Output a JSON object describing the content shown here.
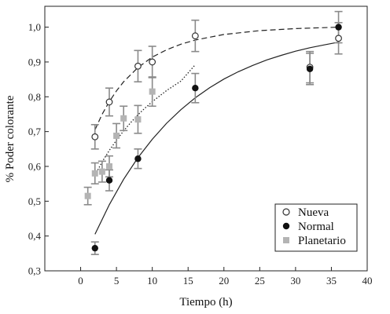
{
  "chart_data": {
    "type": "scatter",
    "xlabel": "Tiempo (h)",
    "ylabel": "% Poder colorante",
    "xlim": [
      -5,
      40
    ],
    "ylim": [
      0.3,
      1.06
    ],
    "xticks": [
      0,
      5,
      10,
      15,
      20,
      25,
      30,
      35,
      40
    ],
    "yticks": [
      0.3,
      0.4,
      0.5,
      0.6,
      0.7,
      0.8,
      0.9,
      1.0
    ],
    "xtick_labels": [
      "0",
      "5",
      "10",
      "15",
      "20",
      "25",
      "30",
      "35",
      "40"
    ],
    "ytick_labels": [
      "0,3",
      "0,4",
      "0,5",
      "0,6",
      "0,7",
      "0,8",
      "0,9",
      "1,0"
    ],
    "grid": false,
    "legend_position": "bottom-right",
    "series": [
      {
        "name": "Nueva",
        "marker": "open-circle",
        "color": "#333333",
        "errorbar_color": "#8a8a8a",
        "fit_style": "dashed",
        "points": [
          {
            "x": 2,
            "y": 0.685,
            "err": 0.035
          },
          {
            "x": 4,
            "y": 0.785,
            "err": 0.04
          },
          {
            "x": 8,
            "y": 0.888,
            "err": 0.045
          },
          {
            "x": 10,
            "y": 0.9,
            "err": 0.045
          },
          {
            "x": 16,
            "y": 0.975,
            "err": 0.045
          },
          {
            "x": 32,
            "y": 0.885,
            "err": 0.045
          },
          {
            "x": 36,
            "y": 0.968,
            "err": 0.045
          }
        ],
        "fit": {
          "x": [
            2,
            3,
            4,
            5,
            6,
            8,
            10,
            12,
            14,
            16,
            20,
            25,
            30,
            36
          ],
          "y": [
            0.705,
            0.75,
            0.786,
            0.817,
            0.843,
            0.884,
            0.914,
            0.935,
            0.951,
            0.963,
            0.979,
            0.99,
            0.996,
            1.0
          ]
        }
      },
      {
        "name": "Normal",
        "marker": "filled-circle",
        "color": "#111111",
        "errorbar_color": "#8a8a8a",
        "fit_style": "solid",
        "points": [
          {
            "x": 2,
            "y": 0.365,
            "err": 0.018
          },
          {
            "x": 4,
            "y": 0.56,
            "err": 0.03
          },
          {
            "x": 8,
            "y": 0.622,
            "err": 0.028
          },
          {
            "x": 16,
            "y": 0.825,
            "err": 0.042
          },
          {
            "x": 32,
            "y": 0.88,
            "err": 0.045
          },
          {
            "x": 36,
            "y": 1.0,
            "err": 0.045
          }
        ],
        "fit": {
          "x": [
            2,
            4,
            6,
            8,
            10,
            12,
            14,
            16,
            18,
            20,
            22,
            24,
            26,
            28,
            30,
            32,
            34,
            36
          ],
          "y": [
            0.405,
            0.49,
            0.563,
            0.625,
            0.678,
            0.724,
            0.763,
            0.797,
            0.826,
            0.851,
            0.872,
            0.89,
            0.906,
            0.919,
            0.931,
            0.941,
            0.949,
            0.957
          ]
        }
      },
      {
        "name": "Planetario",
        "marker": "filled-square",
        "color": "#b4b4b4",
        "errorbar_color": "#8a8a8a",
        "fit_style": "dotted",
        "points": [
          {
            "x": 1,
            "y": 0.515,
            "err": 0.025
          },
          {
            "x": 2,
            "y": 0.58,
            "err": 0.03
          },
          {
            "x": 3,
            "y": 0.585,
            "err": 0.03
          },
          {
            "x": 4,
            "y": 0.6,
            "err": 0.03
          },
          {
            "x": 5,
            "y": 0.688,
            "err": 0.035
          },
          {
            "x": 6,
            "y": 0.738,
            "err": 0.035
          },
          {
            "x": 8,
            "y": 0.735,
            "err": 0.04
          },
          {
            "x": 10,
            "y": 0.815,
            "err": 0.042
          }
        ],
        "fit": {
          "x": [
            2,
            3,
            4,
            5,
            6,
            7,
            8,
            9,
            10,
            12,
            14,
            16
          ],
          "y": [
            0.575,
            0.613,
            0.646,
            0.675,
            0.702,
            0.726,
            0.748,
            0.768,
            0.786,
            0.818,
            0.845,
            0.892
          ]
        }
      }
    ]
  }
}
